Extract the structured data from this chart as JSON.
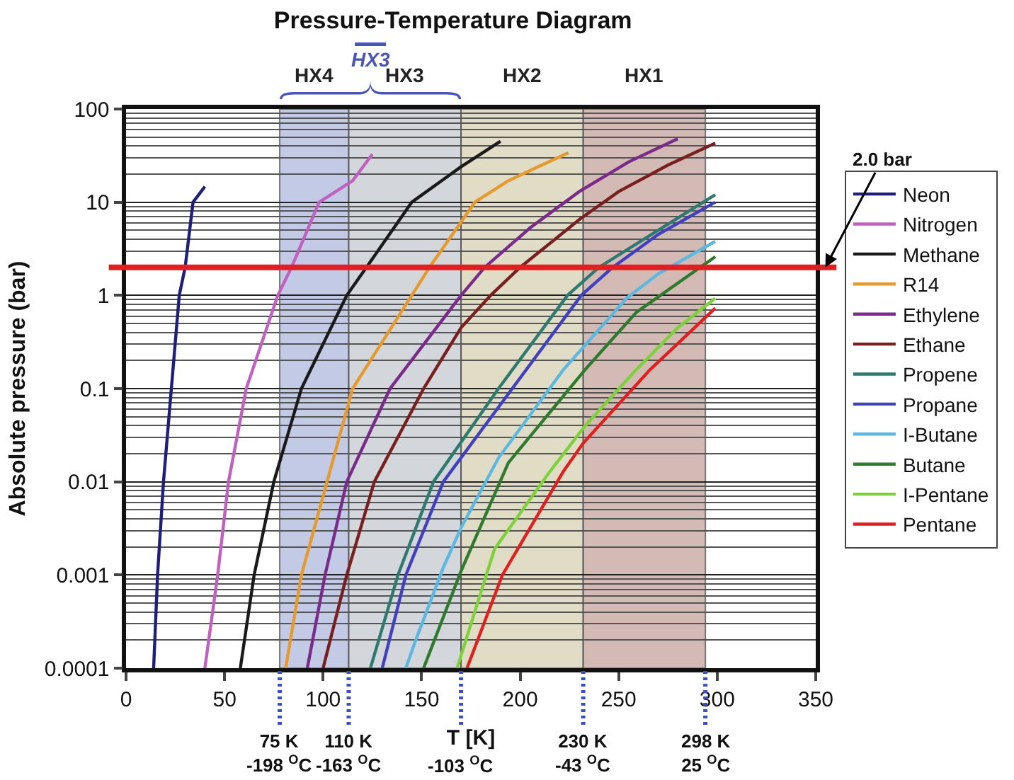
{
  "chart_data": {
    "type": "line",
    "title": "Pressure-Temperature Diagram",
    "xlabel": "T [K]",
    "ylabel": "Absolute pressure (bar)",
    "xlim": [
      0,
      350
    ],
    "xticks": [
      0,
      50,
      100,
      150,
      200,
      250,
      300,
      350
    ],
    "ylim": [
      0.0001,
      100
    ],
    "yticks": [
      0.0001,
      0.001,
      0.01,
      0.1,
      1,
      10,
      100
    ],
    "log": "y",
    "grid": "y",
    "legend": "right",
    "series": [
      {
        "name": "Neon",
        "color": "#1f1f7a",
        "x": [
          14,
          16,
          19,
          23,
          27,
          30,
          34,
          40
        ],
        "values": [
          0.0001,
          0.001,
          0.01,
          0.1,
          1,
          2,
          10,
          14.7
        ]
      },
      {
        "name": "Nitrogen",
        "color": "#c060c0",
        "x": [
          40,
          46.5,
          52,
          61,
          77,
          84,
          98,
          115,
          125
        ],
        "values": [
          0.0001,
          0.001,
          0.01,
          0.1,
          1,
          2,
          10,
          17,
          32.7
        ]
      },
      {
        "name": "Methane",
        "color": "#1a1a1a",
        "x": [
          58,
          65,
          75,
          89,
          112,
          122,
          145,
          170,
          190
        ],
        "values": [
          0.0001,
          0.001,
          0.01,
          0.1,
          1,
          2,
          10,
          24,
          45
        ]
      },
      {
        "name": "R14",
        "color": "#e69a2e",
        "x": [
          81,
          89,
          102,
          115,
          145,
          154,
          177,
          194,
          224.5
        ],
        "values": [
          0.0001,
          0.001,
          0.01,
          0.1,
          1,
          2,
          10,
          17,
          34
        ]
      },
      {
        "name": "Ethylene",
        "color": "#7a2a8a",
        "x": [
          92,
          101,
          112,
          134,
          170,
          182,
          205,
          230,
          255,
          280
        ],
        "values": [
          0.0001,
          0.001,
          0.01,
          0.1,
          1,
          2,
          5.3,
          13,
          27,
          48
        ]
      },
      {
        "name": "Ethane",
        "color": "#7a1f1f",
        "x": [
          100,
          112,
          126,
          151,
          170,
          185,
          200,
          230,
          250,
          275,
          299
        ],
        "values": [
          0.0001,
          0.001,
          0.01,
          0.1,
          0.45,
          1,
          2,
          6.5,
          13,
          25,
          43
        ]
      },
      {
        "name": "Propene",
        "color": "#2e7a70",
        "x": [
          124,
          138,
          156,
          189,
          224,
          240,
          270,
          299
        ],
        "values": [
          0.0001,
          0.001,
          0.01,
          0.1,
          1,
          2,
          5,
          12
        ]
      },
      {
        "name": "Propane",
        "color": "#4040c0",
        "x": [
          130,
          142,
          161,
          196,
          231,
          247,
          270,
          299
        ],
        "values": [
          0.0001,
          0.001,
          0.01,
          0.1,
          1,
          2,
          4.5,
          10
        ]
      },
      {
        "name": "I-Butane",
        "color": "#5cb8e0",
        "x": [
          142,
          147,
          161,
          170,
          189,
          222,
          254,
          270,
          299
        ],
        "values": [
          0.0001,
          0.0002,
          0.0012,
          0.0032,
          0.018,
          0.16,
          0.93,
          1.7,
          3.8
        ]
      },
      {
        "name": "Butane",
        "color": "#2e7a2e",
        "x": [
          151,
          170,
          194,
          233,
          259,
          299
        ],
        "values": [
          0.0001,
          0.0011,
          0.016,
          0.16,
          0.66,
          2.6
        ]
      },
      {
        "name": "I-Pentane",
        "color": "#7ed13a",
        "x": [
          168,
          187,
          215,
          233,
          259,
          280,
          299
        ],
        "values": [
          0.0001,
          0.0019,
          0.0128,
          0.04,
          0.16,
          0.45,
          0.93
        ]
      },
      {
        "name": "Pentane",
        "color": "#e02020",
        "x": [
          173,
          191,
          222,
          232,
          266,
          299
        ],
        "values": [
          0.0001,
          0.001,
          0.013,
          0.026,
          0.16,
          0.73
        ]
      }
    ],
    "bands": [
      {
        "axis": "x",
        "from": 78,
        "to": 113,
        "label": "HX4",
        "color": "#b4bee0"
      },
      {
        "axis": "x",
        "from": 113,
        "to": 170,
        "label": "HX3",
        "color": "#c9ccd2"
      },
      {
        "axis": "x",
        "from": 170,
        "to": 232,
        "label": "HX2",
        "color": "#d9d4b9"
      },
      {
        "axis": "x",
        "from": 232,
        "to": 294,
        "label": "HX1",
        "color": "#c9aaa2"
      }
    ],
    "ref_lines": [
      {
        "axis": "y",
        "value": 2,
        "label": "2.0 bar",
        "color": "#e02020"
      }
    ],
    "annotations": [
      "HX3",
      "75 K\n-198 $^{O}$C",
      "110 K\n-163 $^{O}$C",
      "-103 $^{O}$C",
      "230 K\n-43 $^{O}$C",
      "298 K\n25 $^{O}$C"
    ]
  }
}
